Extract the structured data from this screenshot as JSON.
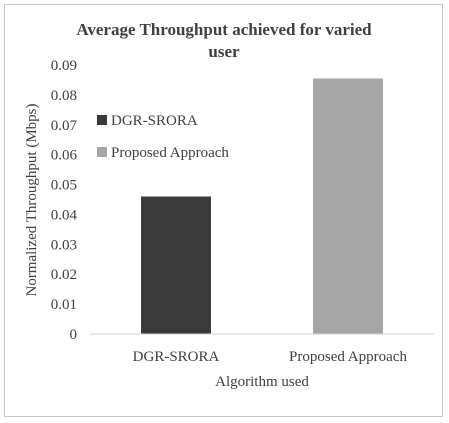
{
  "chart_data": {
    "type": "bar",
    "title_lines": [
      "Average Throughput achieved for varied",
      "user"
    ],
    "xlabel": "Algorithm used",
    "ylabel": "Normalized Throughput (Mbps)",
    "ylim": [
      0,
      0.09
    ],
    "yticks": [
      "0",
      "0.01",
      "0.02",
      "0.03",
      "0.04",
      "0.05",
      "0.06",
      "0.07",
      "0.08",
      "0.09"
    ],
    "grid": false,
    "legend_placement": "left-middle",
    "categories": [
      "DGR-SRORA",
      "Proposed Approach"
    ],
    "series": [
      {
        "name": "DGR-SRORA",
        "values": [
          0.046,
          null
        ],
        "color": "#3a3a3a"
      },
      {
        "name": "Proposed Approach",
        "values": [
          null,
          0.0855
        ],
        "color": "#a6a6a6"
      }
    ]
  }
}
